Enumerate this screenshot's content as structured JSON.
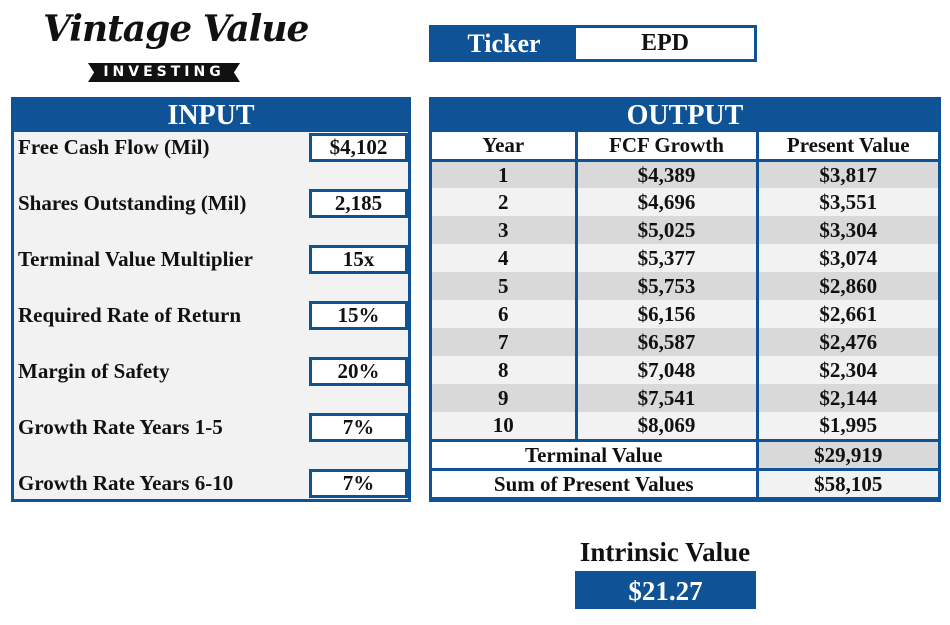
{
  "logo": {
    "script": "Vintage Value",
    "band": "INVESTING"
  },
  "ticker": {
    "label": "Ticker",
    "value": "EPD"
  },
  "input": {
    "title": "INPUT",
    "rows": [
      {
        "label": "Free Cash Flow (Mil)",
        "value": "$4,102"
      },
      {
        "label": "Shares Outstanding (Mil)",
        "value": "2,185"
      },
      {
        "label": "Terminal Value Multiplier",
        "value": "15x"
      },
      {
        "label": "Required Rate of Return",
        "value": "15%"
      },
      {
        "label": "Margin of Safety",
        "value": "20%"
      },
      {
        "label": "Growth Rate Years 1-5",
        "value": "7%"
      },
      {
        "label": "Growth Rate Years 6-10",
        "value": "7%"
      }
    ]
  },
  "output": {
    "title": "OUTPUT",
    "columns": [
      "Year",
      "FCF Growth",
      "Present Value"
    ],
    "rows": [
      [
        "1",
        "$4,389",
        "$3,817"
      ],
      [
        "2",
        "$4,696",
        "$3,551"
      ],
      [
        "3",
        "$5,025",
        "$3,304"
      ],
      [
        "4",
        "$5,377",
        "$3,074"
      ],
      [
        "5",
        "$5,753",
        "$2,860"
      ],
      [
        "6",
        "$6,156",
        "$2,661"
      ],
      [
        "7",
        "$6,587",
        "$2,476"
      ],
      [
        "8",
        "$7,048",
        "$2,304"
      ],
      [
        "9",
        "$7,541",
        "$2,144"
      ],
      [
        "10",
        "$8,069",
        "$1,995"
      ]
    ],
    "terminal_label": "Terminal Value",
    "terminal_value": "$29,919",
    "sum_label": "Sum of Present Values",
    "sum_value": "$58,105"
  },
  "intrinsic": {
    "label": "Intrinsic Value",
    "value": "$21.27"
  },
  "colors": {
    "accent": "#0f5396",
    "row_dark": "#d9d9d9",
    "row_light": "#f2f2f2"
  }
}
